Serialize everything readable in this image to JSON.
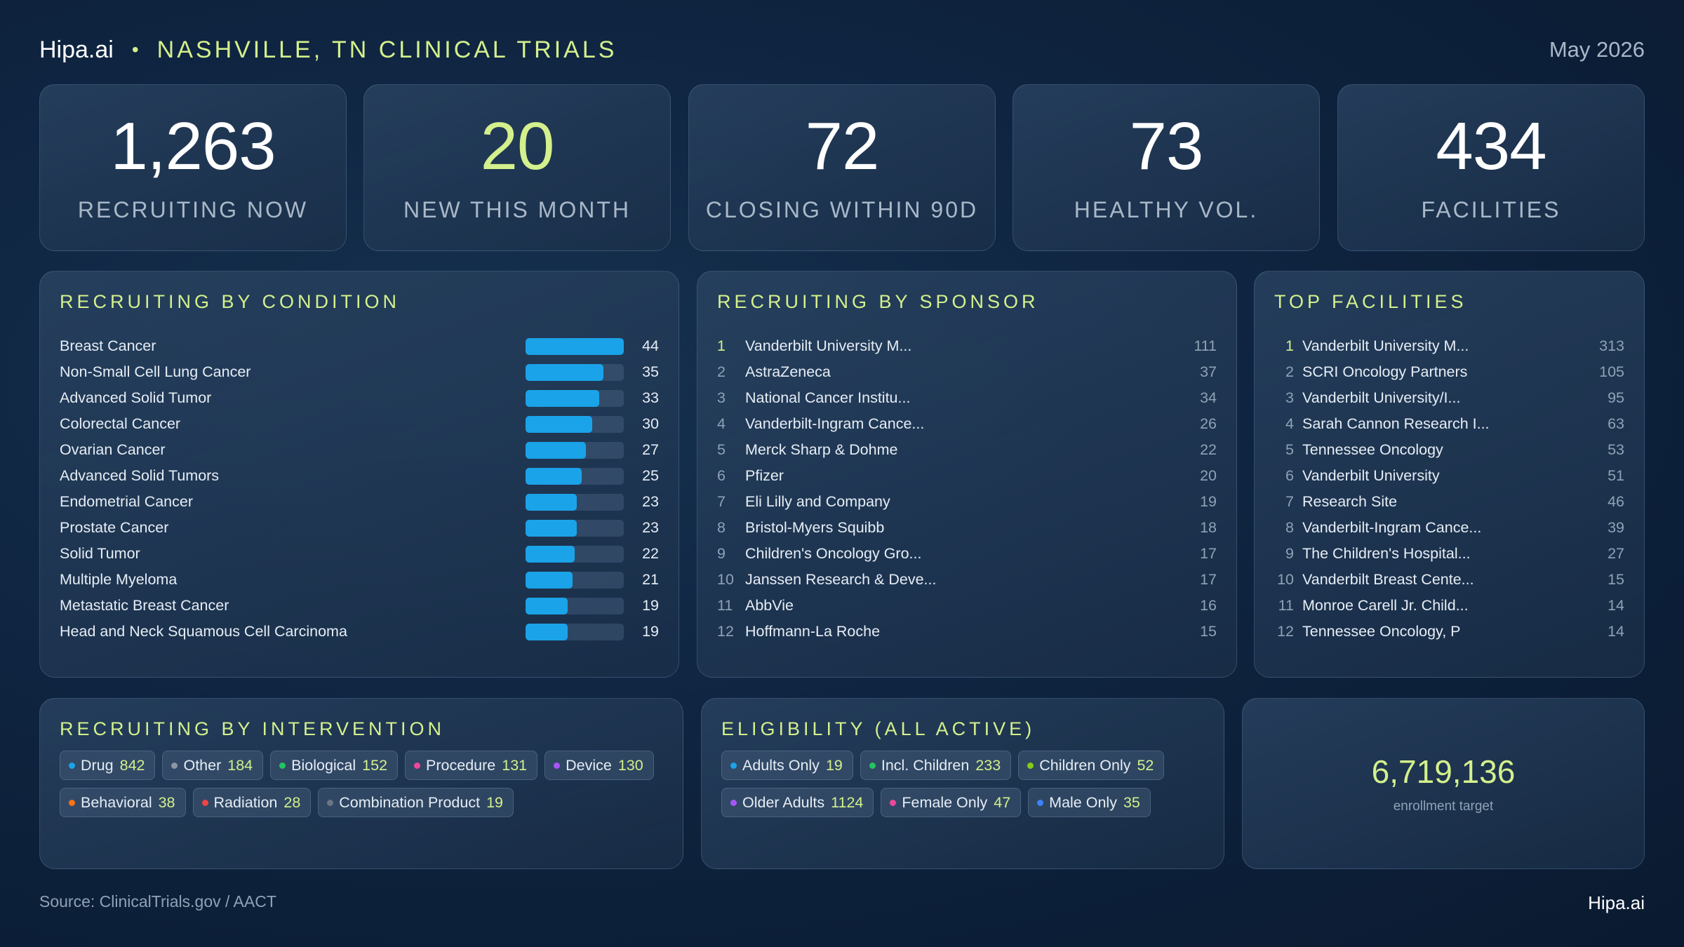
{
  "header": {
    "brand": "Hipa.ai",
    "separator": "•",
    "title": "NASHVILLE, TN CLINICAL TRIALS",
    "date": "May 2026"
  },
  "kpis": [
    {
      "value": "1,263",
      "label": "RECRUITING NOW",
      "accent": false
    },
    {
      "value": "20",
      "label": "NEW THIS MONTH",
      "accent": true
    },
    {
      "value": "72",
      "label": "CLOSING WITHIN 90D",
      "accent": false
    },
    {
      "value": "73",
      "label": "HEALTHY VOL.",
      "accent": false
    },
    {
      "value": "434",
      "label": "FACILITIES",
      "accent": false
    }
  ],
  "by_condition": {
    "title": "RECRUITING BY CONDITION",
    "max": 44,
    "items": [
      {
        "name": "Breast Cancer",
        "count": 44
      },
      {
        "name": "Non-Small Cell Lung Cancer",
        "count": 35
      },
      {
        "name": "Advanced Solid Tumor",
        "count": 33
      },
      {
        "name": "Colorectal Cancer",
        "count": 30
      },
      {
        "name": "Ovarian Cancer",
        "count": 27
      },
      {
        "name": "Advanced Solid Tumors",
        "count": 25
      },
      {
        "name": "Endometrial Cancer",
        "count": 23
      },
      {
        "name": "Prostate Cancer",
        "count": 23
      },
      {
        "name": "Solid Tumor",
        "count": 22
      },
      {
        "name": "Multiple Myeloma",
        "count": 21
      },
      {
        "name": "Metastatic Breast Cancer",
        "count": 19
      },
      {
        "name": "Head and Neck Squamous Cell Carcinoma",
        "count": 19
      }
    ]
  },
  "by_sponsor": {
    "title": "RECRUITING BY SPONSOR",
    "items": [
      {
        "rank": "1",
        "name": "Vanderbilt University M...",
        "count": "111"
      },
      {
        "rank": "2",
        "name": "AstraZeneca",
        "count": "37"
      },
      {
        "rank": "3",
        "name": "National Cancer Institu...",
        "count": "34"
      },
      {
        "rank": "4",
        "name": "Vanderbilt-Ingram Cance...",
        "count": "26"
      },
      {
        "rank": "5",
        "name": "Merck Sharp & Dohme",
        "count": "22"
      },
      {
        "rank": "6",
        "name": "Pfizer",
        "count": "20"
      },
      {
        "rank": "7",
        "name": "Eli Lilly and Company",
        "count": "19"
      },
      {
        "rank": "8",
        "name": "Bristol-Myers Squibb",
        "count": "18"
      },
      {
        "rank": "9",
        "name": "Children's Oncology Gro...",
        "count": "17"
      },
      {
        "rank": "10",
        "name": "Janssen Research & Deve...",
        "count": "17"
      },
      {
        "rank": "11",
        "name": "AbbVie",
        "count": "16"
      },
      {
        "rank": "12",
        "name": "Hoffmann-La Roche",
        "count": "15"
      }
    ]
  },
  "top_facilities": {
    "title": "TOP FACILITIES",
    "items": [
      {
        "rank": "1",
        "name": "Vanderbilt University M...",
        "count": "313"
      },
      {
        "rank": "2",
        "name": "SCRI Oncology Partners",
        "count": "105"
      },
      {
        "rank": "3",
        "name": "Vanderbilt University/I...",
        "count": "95"
      },
      {
        "rank": "4",
        "name": "Sarah Cannon Research I...",
        "count": "63"
      },
      {
        "rank": "5",
        "name": "Tennessee Oncology",
        "count": "53"
      },
      {
        "rank": "6",
        "name": "Vanderbilt University",
        "count": "51"
      },
      {
        "rank": "7",
        "name": "Research Site",
        "count": "46"
      },
      {
        "rank": "8",
        "name": "Vanderbilt-Ingram Cance...",
        "count": "39"
      },
      {
        "rank": "9",
        "name": "The Children's Hospital...",
        "count": "27"
      },
      {
        "rank": "10",
        "name": "Vanderbilt Breast Cente...",
        "count": "15"
      },
      {
        "rank": "11",
        "name": "Monroe Carell Jr. Child...",
        "count": "14"
      },
      {
        "rank": "12",
        "name": "Tennessee Oncology, P",
        "count": "14"
      }
    ]
  },
  "by_intervention": {
    "title": "RECRUITING BY INTERVENTION",
    "items": [
      {
        "label": "Drug",
        "count": "842",
        "color": "#1aa3e8"
      },
      {
        "label": "Other",
        "count": "184",
        "color": "#8a96a6"
      },
      {
        "label": "Biological",
        "count": "152",
        "color": "#22c55e"
      },
      {
        "label": "Procedure",
        "count": "131",
        "color": "#ec4899"
      },
      {
        "label": "Device",
        "count": "130",
        "color": "#a855f7"
      },
      {
        "label": "Behavioral",
        "count": "38",
        "color": "#f97316"
      },
      {
        "label": "Radiation",
        "count": "28",
        "color": "#ef4444"
      },
      {
        "label": "Combination Product",
        "count": "19",
        "color": "#6b7685"
      }
    ]
  },
  "eligibility": {
    "title": "ELIGIBILITY (ALL ACTIVE)",
    "items": [
      {
        "label": "Adults Only",
        "count": "19",
        "color": "#1aa3e8"
      },
      {
        "label": "Incl. Children",
        "count": "233",
        "color": "#22c55e"
      },
      {
        "label": "Children Only",
        "count": "52",
        "color": "#84cc16"
      },
      {
        "label": "Older Adults",
        "count": "1124",
        "color": "#a855f7"
      },
      {
        "label": "Female Only",
        "count": "47",
        "color": "#ec4899"
      },
      {
        "label": "Male Only",
        "count": "35",
        "color": "#3b82f6"
      }
    ]
  },
  "enrollment": {
    "value": "6,719,136",
    "label": "enrollment target"
  },
  "footer": {
    "source": "Source: ClinicalTrials.gov /  AACT",
    "brand": "Hipa.ai"
  }
}
